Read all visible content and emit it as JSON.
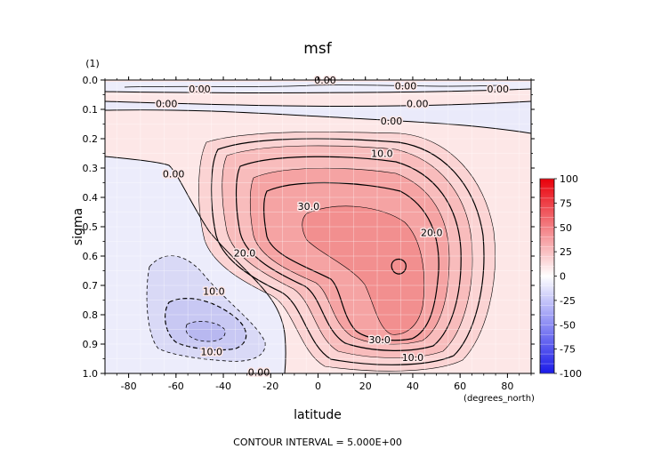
{
  "chart_data": {
    "type": "heatmap",
    "title": "msf",
    "panel_label": "(1)",
    "xlabel": "latitude",
    "x_units": "(degrees_north)",
    "ylabel": "sigma",
    "xlim": [
      -90,
      90
    ],
    "ylim": [
      0.0,
      1.0
    ],
    "x_ticks": [
      -80,
      -60,
      -40,
      -20,
      0,
      20,
      40,
      60,
      80
    ],
    "y_ticks": [
      "0.0",
      "0.1",
      "0.2",
      "0.3",
      "0.4",
      "0.5",
      "0.6",
      "0.7",
      "0.8",
      "0.9",
      "1.0"
    ],
    "footer": "CONTOUR INTERVAL = 5.000E+00",
    "contour_interval": 5.0,
    "colorbar": {
      "range": [
        -100,
        100
      ],
      "labels": [
        "100",
        "75",
        "50",
        "25",
        "0",
        "-25",
        "-50",
        "-75",
        "-100"
      ],
      "positive_color": "#e8000a",
      "negative_color": "#1a1ae8",
      "zero_color": "#ffffff"
    },
    "features": [
      {
        "name": "main positive cell",
        "center_lat": 30,
        "center_sigma": 0.64,
        "max_value": 40
      },
      {
        "name": "southern negative cell",
        "center_lat": -50,
        "center_sigma": 0.86,
        "min_value": -15
      }
    ],
    "contour_labels": [
      {
        "text": "0.00",
        "lat": -50,
        "sigma": 0.03
      },
      {
        "text": "0.00",
        "lat": 3,
        "sigma": 0.0
      },
      {
        "text": "0.00",
        "lat": 37,
        "sigma": 0.02
      },
      {
        "text": "0.00",
        "lat": 76,
        "sigma": 0.03
      },
      {
        "text": "0.00",
        "lat": -64,
        "sigma": 0.08
      },
      {
        "text": "0.00",
        "lat": 42,
        "sigma": 0.08
      },
      {
        "text": "0.00",
        "lat": 31,
        "sigma": 0.14
      },
      {
        "text": "0.00",
        "lat": -61,
        "sigma": 0.32
      },
      {
        "text": "0.00",
        "lat": -25,
        "sigma": 0.995
      },
      {
        "text": "10.0",
        "lat": 27,
        "sigma": 0.25
      },
      {
        "text": "30.0",
        "lat": -4,
        "sigma": 0.43
      },
      {
        "text": "20.0",
        "lat": 48,
        "sigma": 0.52
      },
      {
        "text": "20.0",
        "lat": -31,
        "sigma": 0.59
      },
      {
        "text": "10.0",
        "lat": -44,
        "sigma": 0.72
      },
      {
        "text": "30.0",
        "lat": 26,
        "sigma": 0.885
      },
      {
        "text": "10.0",
        "lat": 40,
        "sigma": 0.945
      },
      {
        "text": "10.0",
        "lat": -45,
        "sigma": 0.925
      }
    ]
  }
}
